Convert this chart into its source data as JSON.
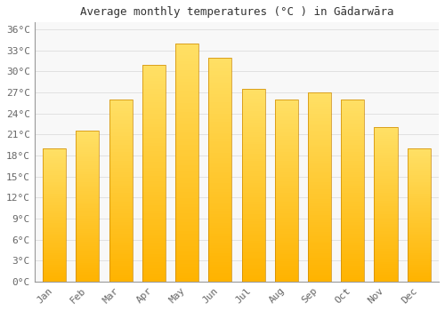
{
  "months": [
    "Jan",
    "Feb",
    "Mar",
    "Apr",
    "May",
    "Jun",
    "Jul",
    "Aug",
    "Sep",
    "Oct",
    "Nov",
    "Dec"
  ],
  "temperatures": [
    19,
    21.5,
    26,
    31,
    34,
    32,
    27.5,
    26,
    27,
    26,
    22,
    19
  ],
  "title": "Average monthly temperatures (°C ) in Gādarwāra",
  "yticks": [
    0,
    3,
    6,
    9,
    12,
    15,
    18,
    21,
    24,
    27,
    30,
    33,
    36
  ],
  "ytick_labels": [
    "0°C",
    "3°C",
    "6°C",
    "9°C",
    "12°C",
    "15°C",
    "18°C",
    "21°C",
    "24°C",
    "27°C",
    "30°C",
    "33°C",
    "36°C"
  ],
  "ylim": [
    0,
    37
  ],
  "bar_color_bottom": "#FFB300",
  "bar_color_top": "#FFDD77",
  "bar_edge_color": "#CC8800",
  "background_color": "#ffffff",
  "plot_bg_color": "#f8f8f8",
  "grid_color": "#dddddd",
  "title_fontsize": 9,
  "tick_fontsize": 8,
  "bar_width": 0.7
}
